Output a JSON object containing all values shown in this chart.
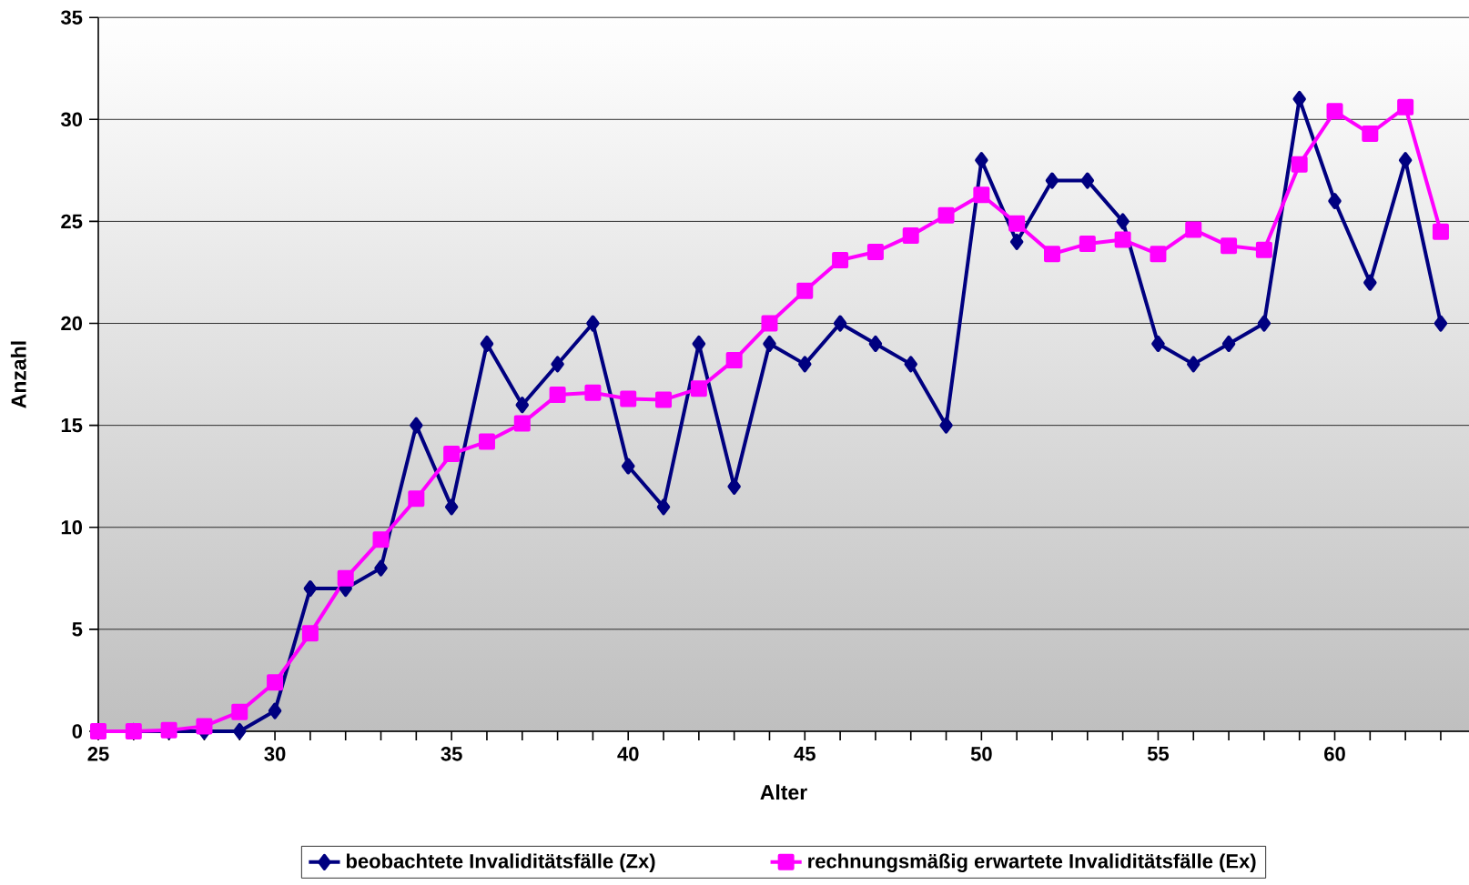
{
  "chart_data": {
    "type": "line",
    "xlabel": "Alter",
    "ylabel": "Anzahl",
    "x": [
      25,
      26,
      27,
      28,
      29,
      30,
      31,
      32,
      33,
      34,
      35,
      36,
      37,
      38,
      39,
      40,
      41,
      42,
      43,
      44,
      45,
      46,
      47,
      48,
      49,
      50,
      51,
      52,
      53,
      54,
      55,
      56,
      57,
      58,
      59,
      60,
      61,
      62,
      63
    ],
    "series": [
      {
        "name": "beobachtete Invaliditätsfälle (Zx)",
        "color": "#000080",
        "marker": "diamond",
        "values": [
          0,
          0,
          0,
          0,
          0,
          1,
          7,
          7,
          8,
          15,
          11,
          19,
          16,
          18,
          20,
          13,
          11,
          19,
          12,
          19,
          18,
          20,
          19,
          18,
          15,
          28,
          24,
          27,
          27,
          25,
          19,
          18,
          19,
          20,
          31,
          26,
          22,
          28,
          20
        ]
      },
      {
        "name": "rechnungsmäßig erwartete Invaliditätsfälle (Ex)",
        "color": "#ff00ff",
        "marker": "square",
        "values": [
          0,
          0,
          0.05,
          0.25,
          0.95,
          2.4,
          4.8,
          7.5,
          9.4,
          11.4,
          13.6,
          14.2,
          15.1,
          16.5,
          16.6,
          16.3,
          16.25,
          16.8,
          18.2,
          20,
          21.6,
          23.1,
          23.5,
          24.3,
          25.3,
          26.3,
          24.9,
          23.4,
          23.9,
          24.1,
          23.4,
          24.6,
          23.8,
          23.6,
          27.8,
          30.4,
          29.3,
          30.6,
          24.5
        ]
      }
    ],
    "xlim": [
      25,
      63.8
    ],
    "ylim": [
      0,
      35
    ],
    "xticks": [
      25,
      {
        "value": 26,
        "label": null
      },
      {
        "value": 27,
        "label": null
      },
      {
        "value": 28,
        "label": null
      },
      {
        "value": 29,
        "label": null
      },
      30,
      {
        "value": 31,
        "label": null
      },
      {
        "value": 32,
        "label": null
      },
      {
        "value": 33,
        "label": null
      },
      {
        "value": 34,
        "label": null
      },
      35,
      {
        "value": 36,
        "label": null
      },
      {
        "value": 37,
        "label": null
      },
      {
        "value": 38,
        "label": null
      },
      {
        "value": 39,
        "label": null
      },
      40,
      {
        "value": 41,
        "label": null
      },
      {
        "value": 42,
        "label": null
      },
      {
        "value": 43,
        "label": null
      },
      {
        "value": 44,
        "label": null
      },
      45,
      {
        "value": 46,
        "label": null
      },
      {
        "value": 47,
        "label": null
      },
      {
        "value": 48,
        "label": null
      },
      {
        "value": 49,
        "label": null
      },
      50,
      {
        "value": 51,
        "label": null
      },
      {
        "value": 52,
        "label": null
      },
      {
        "value": 53,
        "label": null
      },
      {
        "value": 54,
        "label": null
      },
      55,
      {
        "value": 56,
        "label": null
      },
      {
        "value": 57,
        "label": null
      },
      {
        "value": 58,
        "label": null
      },
      {
        "value": 59,
        "label": null
      },
      60,
      {
        "value": 61,
        "label": null
      },
      {
        "value": 62,
        "label": null
      },
      {
        "value": 63,
        "label": null
      }
    ],
    "yticks": [
      0,
      5,
      10,
      15,
      20,
      25,
      30,
      35
    ],
    "grid": "y",
    "legend": "bottom",
    "line_style": "solid"
  }
}
